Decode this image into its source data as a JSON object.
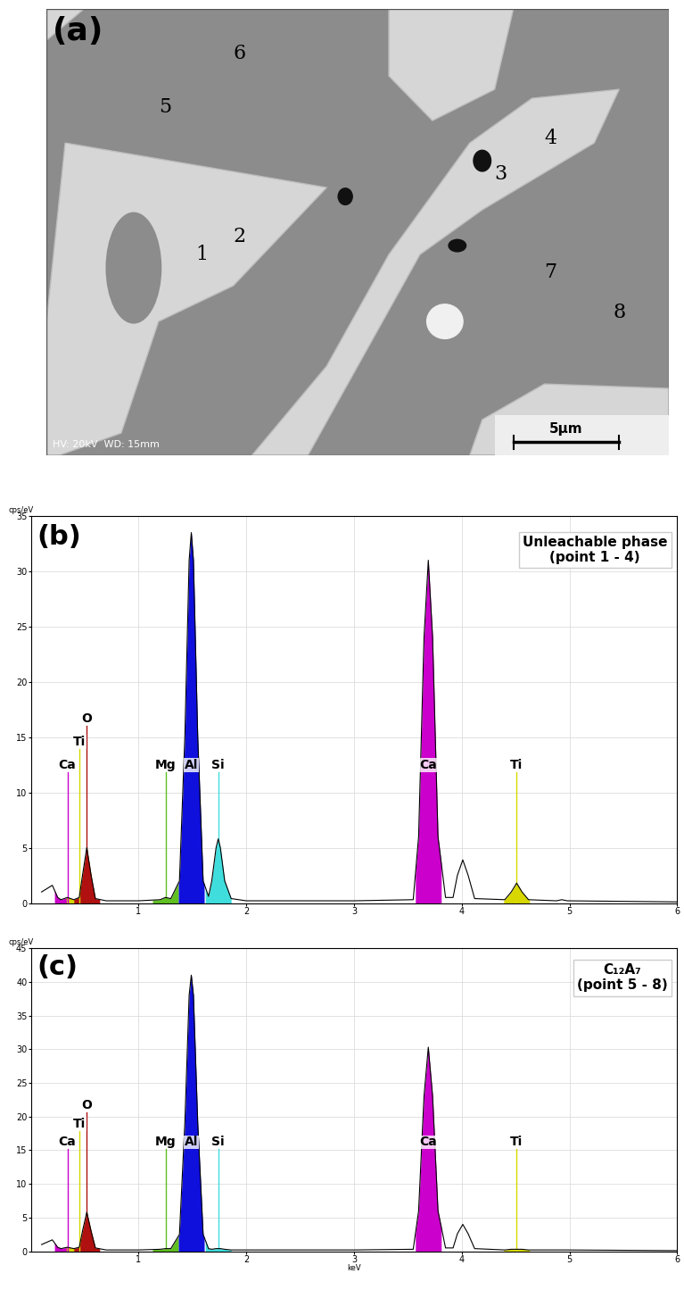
{
  "micrograph": {
    "label": "(a)",
    "points": [
      "1",
      "2",
      "3",
      "4",
      "5",
      "6",
      "7",
      "8"
    ],
    "info": "HV: 20kV  WD: 15mm",
    "scale_bar": "5μm"
  },
  "chart_data": [
    {
      "type": "line",
      "title": "(b)",
      "subtitle": "Unleachable phase\n(point 1 - 4)",
      "y_label": "cps/eV",
      "color": "#000000",
      "x": [
        0.1,
        0.2,
        0.25,
        0.28,
        0.34,
        0.4,
        0.45,
        0.48,
        0.52,
        0.56,
        0.6,
        0.7,
        1.0,
        1.2,
        1.25,
        1.3,
        1.38,
        1.43,
        1.47,
        1.49,
        1.51,
        1.55,
        1.6,
        1.65,
        1.68,
        1.72,
        1.74,
        1.76,
        1.8,
        1.86,
        2.0,
        3.0,
        3.55,
        3.6,
        3.65,
        3.69,
        3.73,
        3.78,
        3.85,
        3.92,
        3.96,
        4.01,
        4.06,
        4.12,
        4.4,
        4.46,
        4.51,
        4.56,
        4.62,
        4.88,
        4.93,
        4.98,
        6.0
      ],
      "values": [
        1.0,
        1.6,
        0.5,
        0.3,
        0.5,
        0.3,
        0.5,
        2.5,
        5.0,
        2.5,
        0.4,
        0.2,
        0.2,
        0.3,
        0.5,
        0.4,
        2,
        15,
        31,
        33.5,
        31,
        15,
        2,
        0.6,
        2,
        5,
        5.8,
        5,
        2,
        0.4,
        0.2,
        0.2,
        0.3,
        6,
        24,
        31,
        24,
        6,
        0.5,
        0.5,
        2.5,
        3.9,
        2.5,
        0.4,
        0.3,
        1.0,
        1.8,
        1.0,
        0.3,
        0.2,
        0.3,
        0.2,
        0.1
      ],
      "element_lines": [
        {
          "name": "Ca",
          "energy": 0.34,
          "color": "#cc00cc"
        },
        {
          "name": "Ti",
          "energy": 0.45,
          "color": "#d8d800"
        },
        {
          "name": "O",
          "energy": 0.52,
          "color": "#b01010"
        },
        {
          "name": "Mg",
          "energy": 1.25,
          "color": "#60c020"
        },
        {
          "name": "Al",
          "energy": 1.49,
          "color": "#1010dd"
        },
        {
          "name": "Si",
          "energy": 1.74,
          "color": "#40dddd"
        },
        {
          "name": "Ca",
          "energy": 3.69,
          "color": "#cc00cc"
        },
        {
          "name": "Ti",
          "energy": 4.51,
          "color": "#d8d800"
        }
      ],
      "xlim": [
        0,
        6
      ],
      "xticks": [
        1,
        2,
        3,
        4,
        5,
        6
      ],
      "ylim": [
        0,
        35
      ],
      "yticks": [
        0,
        5,
        10,
        15,
        20,
        25,
        30,
        35
      ],
      "grid": true
    },
    {
      "type": "line",
      "title": "(c)",
      "subtitle": "C₁₂A₇\n(point 5 - 8)",
      "y_label": "cps/eV",
      "x_label": "keV",
      "color": "#000000",
      "x": [
        0.1,
        0.2,
        0.25,
        0.28,
        0.34,
        0.4,
        0.45,
        0.48,
        0.52,
        0.56,
        0.6,
        0.7,
        1.0,
        1.2,
        1.25,
        1.3,
        1.38,
        1.43,
        1.47,
        1.49,
        1.51,
        1.55,
        1.6,
        1.65,
        1.68,
        1.72,
        1.74,
        1.76,
        1.8,
        1.86,
        2.0,
        3.0,
        3.55,
        3.6,
        3.65,
        3.69,
        3.73,
        3.78,
        3.85,
        3.92,
        3.96,
        4.01,
        4.06,
        4.12,
        4.4,
        4.46,
        4.51,
        4.56,
        4.62,
        4.88,
        4.93,
        4.98,
        6.0
      ],
      "values": [
        1.0,
        1.7,
        0.6,
        0.4,
        0.6,
        0.4,
        0.6,
        3.0,
        5.8,
        3.0,
        0.5,
        0.2,
        0.2,
        0.3,
        0.4,
        0.4,
        2.5,
        19,
        38,
        41,
        38,
        19,
        2.5,
        0.4,
        0.3,
        0.4,
        0.4,
        0.4,
        0.3,
        0.2,
        0.2,
        0.2,
        0.3,
        6,
        23,
        30.3,
        23,
        6,
        0.5,
        0.5,
        2.6,
        4.0,
        2.6,
        0.4,
        0.2,
        0.3,
        0.3,
        0.3,
        0.2,
        0.2,
        0.2,
        0.2,
        0.1
      ],
      "element_lines": [
        {
          "name": "Ca",
          "energy": 0.34,
          "color": "#cc00cc"
        },
        {
          "name": "Ti",
          "energy": 0.45,
          "color": "#d8d800"
        },
        {
          "name": "O",
          "energy": 0.52,
          "color": "#b01010"
        },
        {
          "name": "Mg",
          "energy": 1.25,
          "color": "#60c020"
        },
        {
          "name": "Al",
          "energy": 1.49,
          "color": "#1010dd"
        },
        {
          "name": "Si",
          "energy": 1.74,
          "color": "#40dddd"
        },
        {
          "name": "Ca",
          "energy": 3.69,
          "color": "#cc00cc"
        },
        {
          "name": "Ti",
          "energy": 4.51,
          "color": "#d8d800"
        }
      ],
      "xlim": [
        0,
        6
      ],
      "xticks": [
        1,
        2,
        3,
        4,
        5,
        6
      ],
      "ylim": [
        0,
        45
      ],
      "yticks": [
        0,
        5,
        10,
        15,
        20,
        25,
        30,
        35,
        40,
        45
      ],
      "grid": true
    }
  ]
}
